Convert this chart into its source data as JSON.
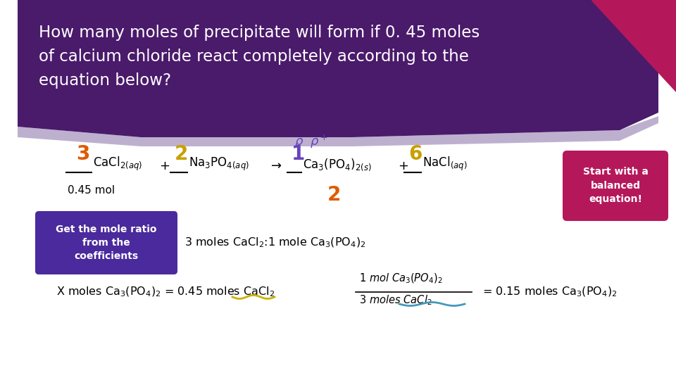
{
  "bg_color": "#ffffff",
  "header_bg": "#4a1a6b",
  "header_shadow_color": "#7a6090",
  "header_text": "How many moles of precipitate will form if 0. 45 moles\nof calcium chloride react completely according to the\nequation below?",
  "header_text_color": "#ffffff",
  "pink_corner_color": "#b5185a",
  "pink_corner_dark": "#7a0030",
  "coeff_3_color": "#e05a00",
  "coeff_2_color": "#c8a000",
  "coeff_1_color": "#6644bb",
  "coeff_6_color": "#c8a000",
  "coeff_question_color": "#e05a00",
  "coeff_pp_color": "#6644bb",
  "start_box_color": "#b5185a",
  "start_box_text": "Start with a\nbalanced\nequation!",
  "mole_ratio_box_color": "#4a2a9c",
  "mole_ratio_text": "Get the mole ratio\nfrom the\ncoefficients"
}
